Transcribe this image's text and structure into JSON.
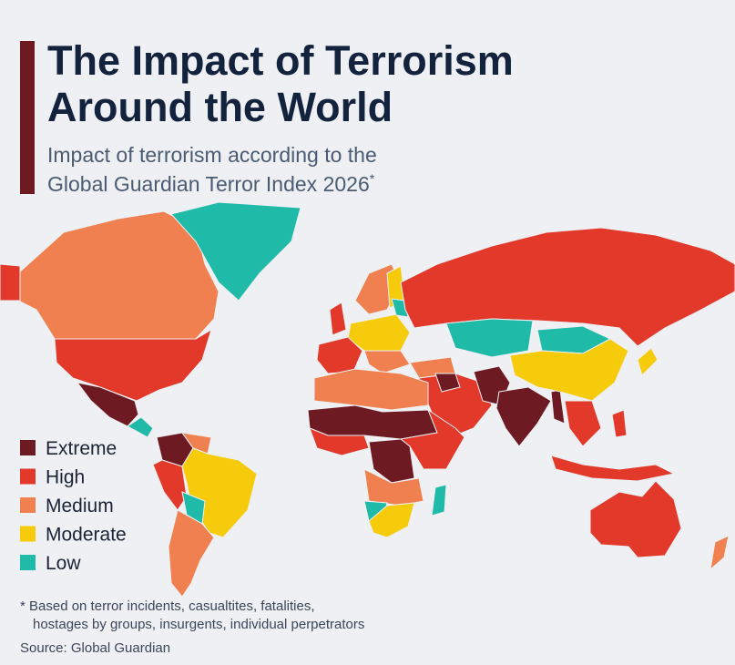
{
  "header": {
    "title_lines": [
      "The Impact of Terrorism",
      "Around the World"
    ],
    "subtitle_lines": [
      "Impact of terrorism according to the",
      "Global Guardian Terror Index 2026"
    ],
    "subtitle_mark": "*"
  },
  "legend": [
    {
      "label": "Extreme",
      "color": "#6e1a22"
    },
    {
      "label": "High",
      "color": "#e2392b"
    },
    {
      "label": "Medium",
      "color": "#f0804f"
    },
    {
      "label": "Moderate",
      "color": "#f5cb0b"
    },
    {
      "label": "Low",
      "color": "#1fbaa8"
    }
  ],
  "footnote_lines": [
    "* Based on terror incidents, casualtites, fatalities,",
    "hostages by groups, insurgents, individual perpetrators"
  ],
  "source": "Source: Global Guardian"
}
